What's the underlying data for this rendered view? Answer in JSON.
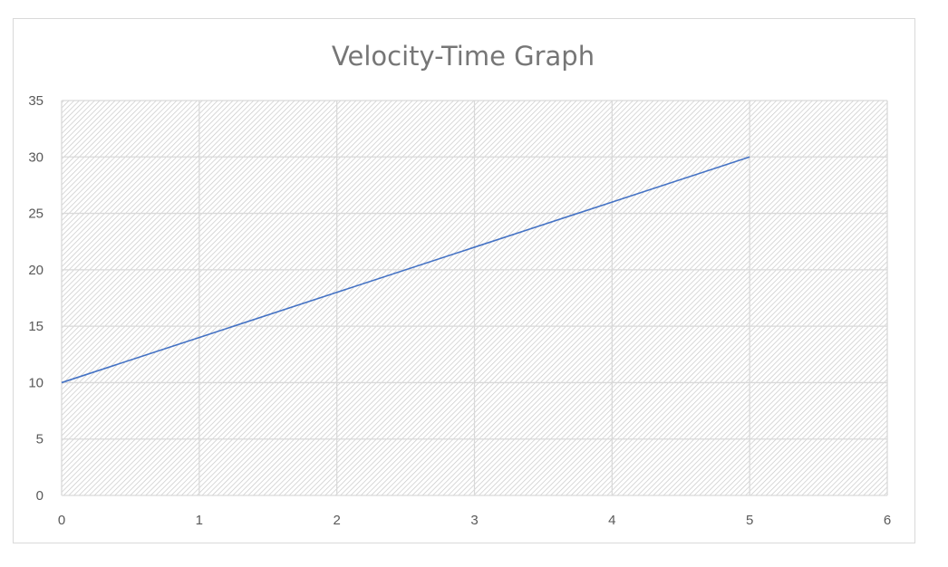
{
  "chart_data": {
    "type": "line",
    "title": "Velocity-Time Graph",
    "xlabel": "",
    "ylabel": "",
    "xlim": [
      0,
      6
    ],
    "ylim": [
      0,
      35
    ],
    "x_ticks": [
      0,
      1,
      2,
      3,
      4,
      5,
      6
    ],
    "y_ticks": [
      0,
      5,
      10,
      15,
      20,
      25,
      30,
      35
    ],
    "grid": true,
    "legend": "none",
    "series": [
      {
        "x": [
          0,
          1,
          2,
          3,
          4,
          5
        ],
        "values": [
          10,
          14,
          18,
          22,
          26,
          30
        ],
        "color": "#4472c4"
      }
    ],
    "colors": {
      "line": "#4472c4",
      "grid": "#d9d9d9",
      "plot_hatch": "#c8c8c8",
      "text": "#595959",
      "title": "#767676"
    }
  }
}
